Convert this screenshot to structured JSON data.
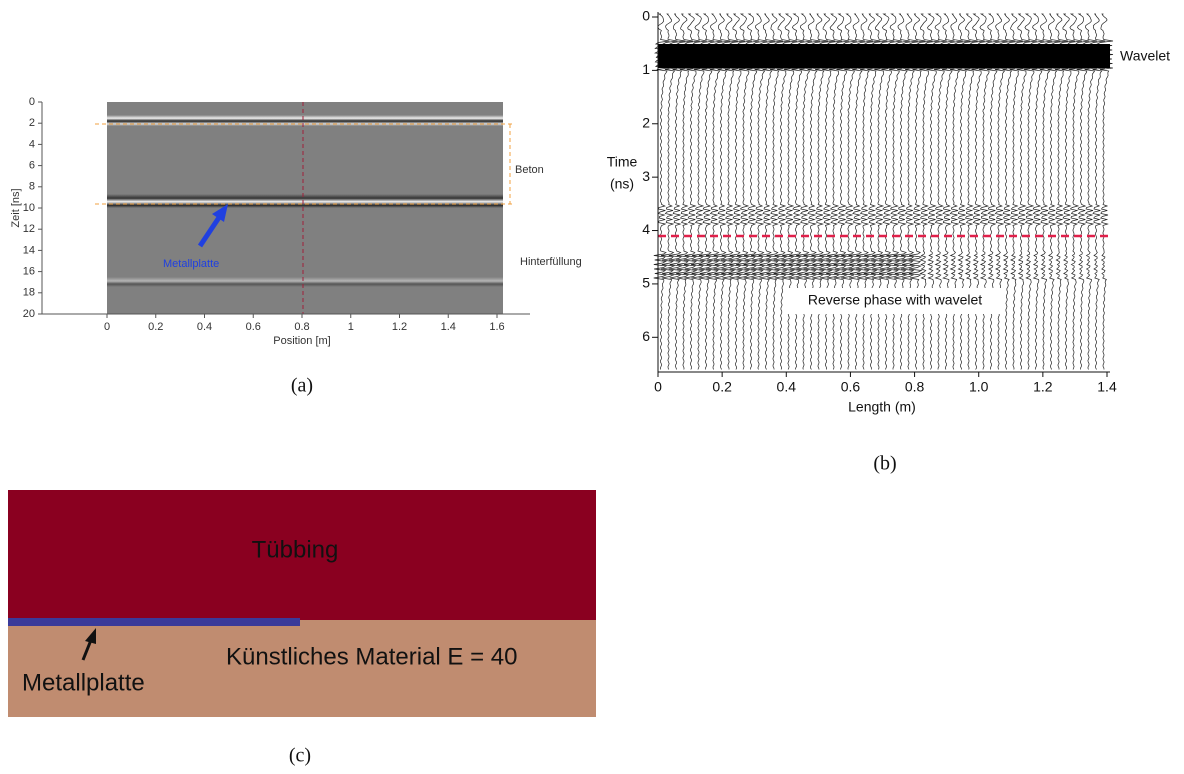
{
  "panels": [
    {
      "label": "(a)",
      "y_axis_label": "Zeit [ns]",
      "x_axis_label": "Position [m]",
      "xlim": [
        0,
        1.6
      ],
      "ylim": [
        0,
        20
      ],
      "xticks": [
        0,
        0.2,
        0.4,
        0.6,
        0.8,
        1,
        1.2,
        1.4,
        1.6
      ],
      "yticks": [
        0,
        2,
        4,
        6,
        8,
        10,
        12,
        14,
        16,
        18,
        20
      ],
      "annotations": [
        "Beton",
        "Hinterfüllung",
        "Metallplatte"
      ]
    },
    {
      "label": "(b)",
      "y_axis_label": [
        "Time",
        "(ns)"
      ],
      "x_axis_label": "Length (m)",
      "xlim": [
        0,
        1.4
      ],
      "ylim": [
        0,
        6.65
      ],
      "xticks": [
        0,
        0.2,
        0.4,
        0.6,
        0.8,
        {
          "value": 1,
          "label": "1.0"
        },
        1.2,
        1.4
      ],
      "yticks": [
        0,
        1,
        2,
        3,
        4,
        5,
        6
      ],
      "annotations": [
        "Wavelet",
        "Reverse phase with wavelet"
      ]
    },
    {
      "label": "(c)",
      "annotations": [
        "Tübbing",
        "Künstliches Material E = 40",
        "Metallplatte"
      ]
    }
  ]
}
